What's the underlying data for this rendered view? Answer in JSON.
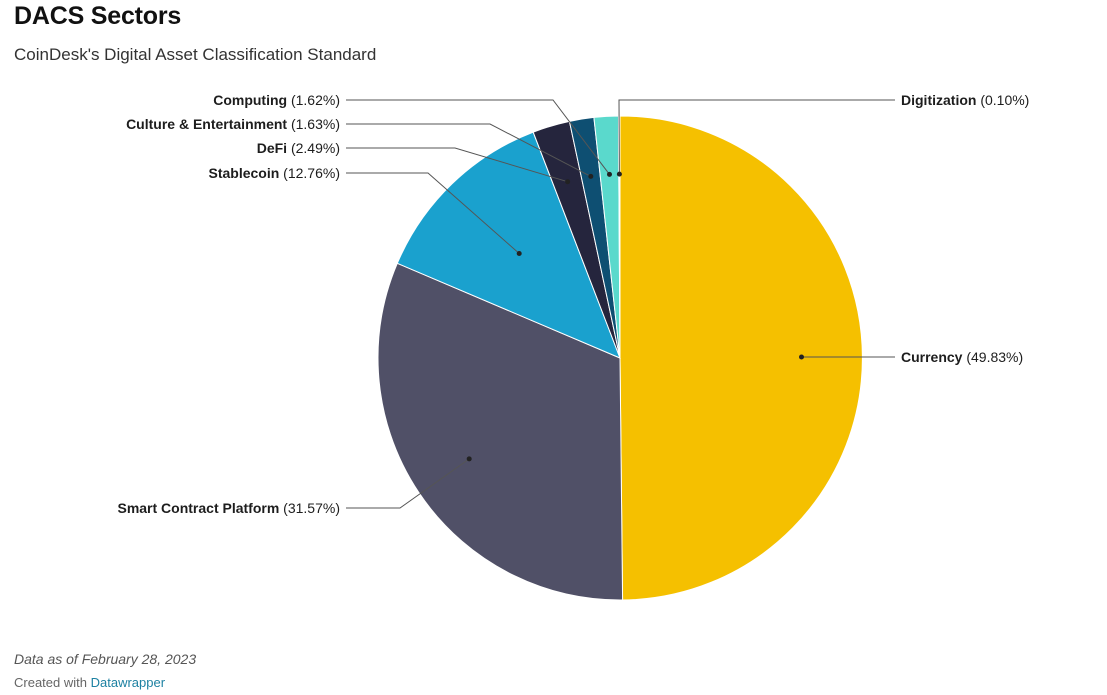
{
  "header": {
    "title": "DACS Sectors",
    "subtitle": "CoinDesk's Digital Asset Classification Standard"
  },
  "footer": {
    "notes": "Data as of February 28, 2023",
    "credit_prefix": "Created with",
    "credit_link": "Datawrapper"
  },
  "chart_data": {
    "type": "pie",
    "title": "DACS Sectors",
    "subtitle": "CoinDesk's Digital Asset Classification Standard",
    "slices": [
      {
        "name": "Currency",
        "value": 49.83,
        "label": "(49.83%)",
        "color": "#f5c000",
        "side": "right"
      },
      {
        "name": "Smart Contract Platform",
        "value": 31.57,
        "label": "(31.57%)",
        "color": "#505067",
        "side": "left"
      },
      {
        "name": "Stablecoin",
        "value": 12.76,
        "label": "(12.76%)",
        "color": "#1aa1ce",
        "side": "left"
      },
      {
        "name": "DeFi",
        "value": 2.49,
        "label": "(2.49%)",
        "color": "#25253d",
        "side": "left"
      },
      {
        "name": "Culture & Entertainment",
        "value": 1.63,
        "label": "(1.63%)",
        "color": "#0e4f72",
        "side": "left"
      },
      {
        "name": "Computing",
        "value": 1.62,
        "label": "(1.62%)",
        "color": "#5ad9cc",
        "side": "left"
      },
      {
        "name": "Digitization",
        "value": 0.1,
        "label": "(0.10%)",
        "color": "#bde8e8",
        "side": "right"
      }
    ]
  }
}
